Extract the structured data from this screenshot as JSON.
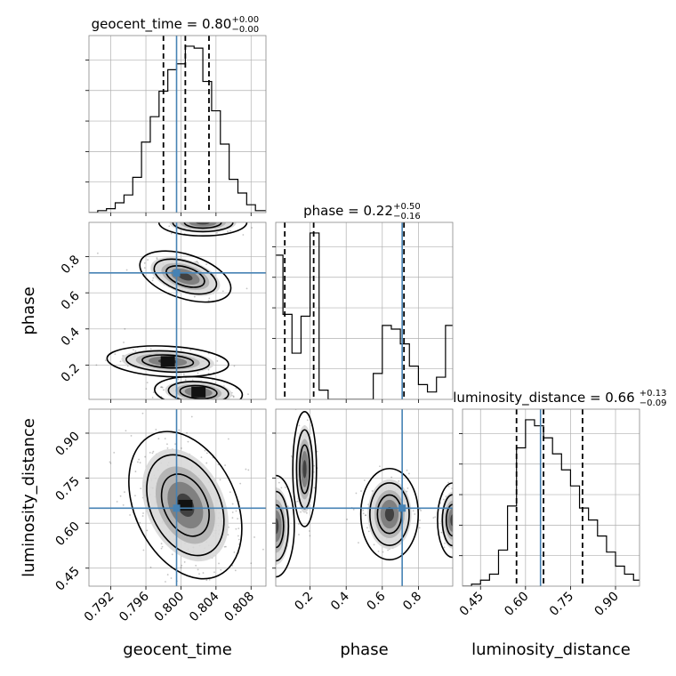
{
  "chart_data": {
    "type": "corner",
    "parameters": [
      "geocent_time",
      "phase",
      "luminosity_distance"
    ],
    "truths": {
      "geocent_time": 0.7995,
      "phase": 0.71,
      "luminosity_distance": 0.65
    },
    "axis_ranges": {
      "geocent_time": [
        0.7895,
        0.8097
      ],
      "phase": [
        0.01,
        0.99
      ],
      "luminosity_distance": [
        0.39,
        0.98
      ]
    },
    "ticks": {
      "geocent_time": {
        "values": [
          0.792,
          0.796,
          0.8,
          0.804,
          0.808
        ],
        "labels": [
          "0.792",
          "0.796",
          "0.800",
          "0.804",
          "0.808"
        ]
      },
      "phase": {
        "values": [
          0.2,
          0.4,
          0.6,
          0.8
        ],
        "labels": [
          "0.2",
          "0.4",
          "0.6",
          "0.8"
        ]
      },
      "luminosity_distance": {
        "values": [
          0.45,
          0.6,
          0.75,
          0.9
        ],
        "labels": [
          "0.45",
          "0.60",
          "0.75",
          "0.90"
        ]
      }
    },
    "titles": [
      {
        "param": "geocent_time",
        "text": "geocent_time = 0.80",
        "plus": "+0.00",
        "minus": "−0.00"
      },
      {
        "param": "phase",
        "text": "phase = 0.22",
        "plus": "+0.50",
        "minus": "−0.16"
      },
      {
        "param": "luminosity_distance",
        "text": "luminosity_distance = 0.66",
        "plus": "+0.13",
        "minus": "−0.09"
      }
    ],
    "quantiles": {
      "geocent_time": [
        0.798,
        0.8005,
        0.8032
      ],
      "phase": [
        0.06,
        0.22,
        0.72
      ],
      "luminosity_distance": [
        0.57,
        0.66,
        0.79
      ]
    },
    "histograms": {
      "geocent_time": {
        "edges": [
          0.7895,
          0.7905,
          0.7915,
          0.7925,
          0.7935,
          0.7945,
          0.7955,
          0.7965,
          0.7975,
          0.7985,
          0.7995,
          0.8005,
          0.8015,
          0.8025,
          0.8035,
          0.8045,
          0.8055,
          0.8065,
          0.8075,
          0.8085,
          0.8097
        ],
        "counts": [
          0,
          1,
          2,
          5,
          9,
          18,
          36,
          49,
          62,
          73,
          76,
          85,
          84,
          67,
          52,
          35,
          17,
          10,
          4,
          1
        ]
      },
      "phase": {
        "edges": [
          0.0,
          0.05,
          0.1,
          0.15,
          0.2,
          0.25,
          0.3,
          0.35,
          0.4,
          0.45,
          0.5,
          0.55,
          0.6,
          0.65,
          0.7,
          0.75,
          0.8,
          0.85,
          0.9,
          0.95,
          1.0
        ],
        "counts": [
          78,
          46,
          25,
          45,
          90,
          5,
          0,
          0,
          0,
          0,
          0,
          14,
          40,
          38,
          30,
          18,
          8,
          4,
          12,
          40
        ]
      },
      "luminosity_distance": {
        "edges": [
          0.39,
          0.42,
          0.45,
          0.48,
          0.51,
          0.54,
          0.57,
          0.6,
          0.63,
          0.66,
          0.69,
          0.72,
          0.75,
          0.78,
          0.81,
          0.84,
          0.87,
          0.9,
          0.93,
          0.96,
          0.99
        ],
        "counts": [
          0,
          1,
          3,
          6,
          18,
          40,
          69,
          83,
          80,
          74,
          66,
          58,
          50,
          39,
          33,
          25,
          17,
          10,
          6,
          3
        ]
      }
    },
    "grid": true,
    "colors": {
      "truth": "#4682b4",
      "contour": "#000000",
      "histogram": "#000000",
      "quantile": "#000000",
      "grid": "#b0b0b0"
    }
  }
}
